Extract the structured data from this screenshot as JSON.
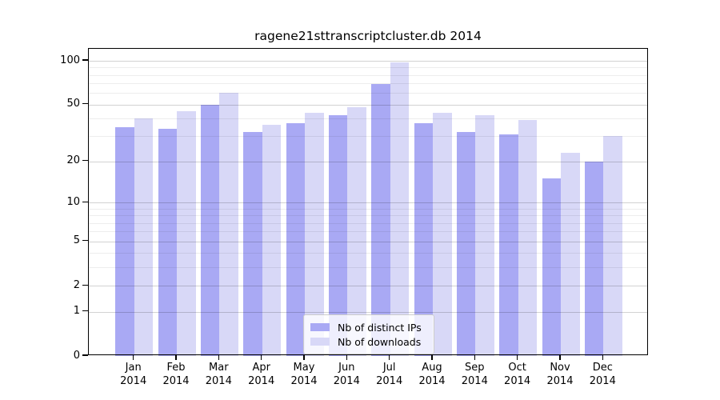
{
  "title": "ragene21sttranscriptcluster.db 2014",
  "chart_data": {
    "type": "bar",
    "title": "ragene21sttranscriptcluster.db 2014",
    "categories": [
      "Jan 2014",
      "Feb 2014",
      "Mar 2014",
      "Apr 2014",
      "May 2014",
      "Jun 2014",
      "Jul 2014",
      "Aug 2014",
      "Sep 2014",
      "Oct 2014",
      "Nov 2014",
      "Dec 2014"
    ],
    "series": [
      {
        "name": "Nb of distinct IPs",
        "color": "#a9a9f4",
        "values": [
          35,
          34,
          50,
          32,
          37,
          42,
          69,
          37,
          32,
          31,
          15,
          20
        ]
      },
      {
        "name": "Nb of downloads",
        "color": "#d8d8f7",
        "values": [
          40,
          45,
          60,
          36,
          44,
          48,
          97,
          44,
          42,
          39,
          23,
          30
        ]
      }
    ],
    "xlabel": "",
    "ylabel": "",
    "yscale": "log(value+1)",
    "ylim": [
      0,
      120
    ],
    "yticks": [
      0,
      1,
      2,
      5,
      10,
      20,
      50,
      100
    ],
    "minor_gridline_values": [
      3,
      4,
      6,
      7,
      8,
      9,
      30,
      40,
      60,
      70,
      80,
      90
    ],
    "grid": true,
    "legend_position": "bottom-center"
  },
  "colors": {
    "axis": "#000000",
    "major_gridline": "#d2d2d2",
    "minor_gridline": "#ededed",
    "legend_border": "#cccccc"
  }
}
